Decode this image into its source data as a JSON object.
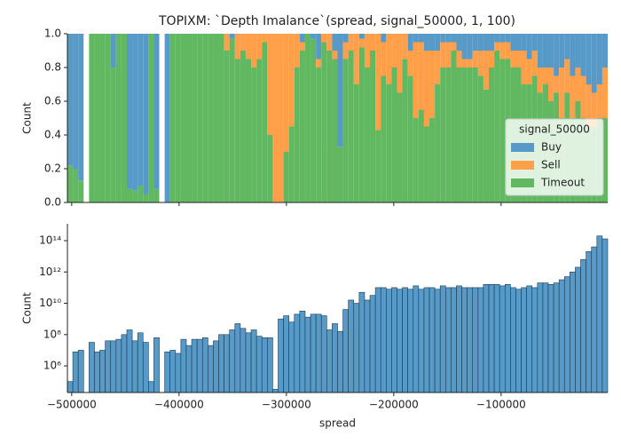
{
  "chart_data": [
    {
      "type": "histogram",
      "title": "TOPIXM: `Depth Imalance`(spread, signal_50000, 1, 100)",
      "ylabel": "Count",
      "stacked": true,
      "legend": "lower right",
      "legend_title": "signal_50000",
      "bins": [
        -504000,
        -498967,
        -493934,
        -488901,
        -483868,
        -478835,
        -473802,
        -468769,
        -463736,
        -458703,
        -453670,
        -448637,
        -443604,
        -438571,
        -433538,
        -428505,
        -423472,
        -418439,
        -413406,
        -408373,
        -403340,
        -398307,
        -393274,
        -388241,
        -383208,
        -378175,
        -373142,
        -368109,
        -363076,
        -358043,
        -353010,
        -347977,
        -342944,
        -337911,
        -332878,
        -327845,
        -322812,
        -317779,
        -312746,
        -307713,
        -302680,
        -297647,
        -292614,
        -287581,
        -282548,
        -277515,
        -272482,
        -267449,
        -262416,
        -257383,
        -252350,
        -247317,
        -242284,
        -237251,
        -232218,
        -227185,
        -222152,
        -217119,
        -212086,
        -207053,
        -202020,
        -196987,
        -191954,
        -186921,
        -181888,
        -176855,
        -171822,
        -166789,
        -161756,
        -156723,
        -151690,
        -146657,
        -141624,
        -136591,
        -131558,
        -126525,
        -121492,
        -116459,
        -111426,
        -106393,
        -101360,
        -96327,
        -91294,
        -86261,
        -81228,
        -76195,
        -71162,
        -66129,
        -61096,
        -56063,
        -51030,
        -45997,
        -40964,
        -35931,
        -30898,
        -25865,
        -20832,
        -15799,
        -10766,
        -5733,
        -700
      ],
      "series": [
        {
          "name": "Buy",
          "color": "#5799c7",
          "values": [
            0.78,
            0.8,
            0.87,
            null,
            0,
            0,
            0,
            0,
            0.2,
            0,
            0,
            0.92,
            0.93,
            0.9,
            0.95,
            0,
            0.92,
            null,
            1,
            0,
            0,
            0,
            0,
            0,
            0,
            0,
            0,
            0,
            0,
            0,
            0.03,
            0,
            0,
            0,
            0,
            0,
            0,
            0,
            0,
            0,
            0,
            0,
            0,
            0.05,
            0,
            0.03,
            0.15,
            0,
            0,
            0.1,
            0.67,
            0.05,
            0,
            0,
            0.03,
            0,
            0,
            0,
            0.05,
            0,
            0,
            0,
            0,
            0.1,
            0.05,
            0.05,
            0.1,
            0.1,
            0.1,
            0.05,
            0.05,
            0.05,
            0.1,
            0.15,
            0.15,
            0.1,
            0.1,
            0.1,
            0.1,
            0.05,
            0.05,
            0.05,
            0.1,
            0.1,
            0.1,
            0.15,
            0.1,
            0.2,
            0.2,
            0.2,
            0.25,
            0.2,
            0.15,
            0.25,
            0.2,
            0.25,
            0.3,
            0.35,
            0.3,
            0.2
          ]
        },
        {
          "name": "Sell",
          "color": "#ff9f4a",
          "values": [
            0,
            0,
            0,
            null,
            0,
            0,
            0,
            0,
            0,
            0,
            0,
            0,
            0,
            0,
            0,
            0,
            0,
            null,
            0,
            0,
            0,
            0,
            0,
            0,
            0,
            0,
            0,
            0,
            0,
            0.1,
            0,
            0.15,
            0.1,
            0.15,
            0.2,
            0.15,
            0.05,
            0.6,
            1,
            1,
            0.7,
            0.55,
            0.2,
            0.05,
            0,
            0,
            0.05,
            0.05,
            0.1,
            0.05,
            0,
            0.1,
            0.1,
            0.3,
            0.05,
            0.2,
            0.1,
            0.57,
            0.2,
            0.3,
            0.2,
            0.35,
            0.15,
            0.15,
            0.45,
            0.4,
            0.45,
            0.4,
            0.2,
            0.15,
            0.15,
            0.05,
            0.1,
            0.05,
            0.05,
            0.1,
            0.15,
            0.23,
            0.1,
            0.05,
            0.1,
            0.1,
            0.1,
            0.1,
            0.2,
            0.15,
            0.15,
            0.15,
            0.1,
            0.2,
            0.1,
            0.3,
            0.2,
            0.25,
            0.2,
            0.25,
            0.25,
            0.2,
            0.2,
            0.3
          ]
        },
        {
          "name": "Timeout",
          "color": "#61b861",
          "values": [
            0.22,
            0.2,
            0.13,
            null,
            1,
            1,
            1,
            1,
            0.8,
            1,
            1,
            0.08,
            0.07,
            0.1,
            0.05,
            1,
            0.08,
            null,
            0,
            1,
            1,
            1,
            1,
            1,
            1,
            1,
            1,
            1,
            1,
            0.9,
            0.97,
            0.85,
            0.9,
            0.85,
            0.8,
            0.85,
            0.95,
            0.4,
            0,
            0,
            0.3,
            0.45,
            0.8,
            0.9,
            1,
            0.97,
            0.8,
            0.95,
            0.9,
            0.85,
            0.33,
            0.85,
            0.9,
            0.7,
            0.92,
            0.8,
            0.9,
            0.43,
            0.75,
            0.7,
            0.8,
            0.65,
            0.85,
            0.75,
            0.5,
            0.55,
            0.45,
            0.5,
            0.7,
            0.8,
            0.8,
            0.9,
            0.8,
            0.8,
            0.8,
            0.8,
            0.75,
            0.67,
            0.8,
            0.9,
            0.85,
            0.85,
            0.8,
            0.8,
            0.7,
            0.7,
            0.75,
            0.65,
            0.7,
            0.6,
            0.65,
            0.5,
            0.65,
            0.5,
            0.6,
            0.5,
            0.45,
            0.45,
            0.5,
            0.5
          ]
        }
      ],
      "xlim": [
        -504000,
        -700
      ],
      "xticks": [
        -500000,
        -400000,
        -300000,
        -200000,
        -100000
      ],
      "ylim": [
        0,
        1
      ],
      "yticks": [
        {
          "value": 0,
          "label": "0.0"
        },
        {
          "value": 0.2,
          "label": "0.2"
        },
        {
          "value": 0.4,
          "label": "0.4"
        },
        {
          "value": 0.6,
          "label": "0.6"
        },
        {
          "value": 0.8,
          "label": "0.8"
        },
        {
          "value": 1,
          "label": "1.0"
        }
      ]
    },
    {
      "type": "histogram",
      "xlabel": "spread",
      "ylabel": "Count",
      "log_y": true,
      "color": "#5799c7",
      "bins": [
        -504000,
        -498967,
        -493934,
        -488901,
        -483868,
        -478835,
        -473802,
        -468769,
        -463736,
        -458703,
        -453670,
        -448637,
        -443604,
        -438571,
        -433538,
        -428505,
        -423472,
        -418439,
        -413406,
        -408373,
        -403340,
        -398307,
        -393274,
        -388241,
        -383208,
        -378175,
        -373142,
        -368109,
        -363076,
        -358043,
        -353010,
        -347977,
        -342944,
        -337911,
        -332878,
        -327845,
        -322812,
        -317779,
        -312746,
        -307713,
        -302680,
        -297647,
        -292614,
        -287581,
        -282548,
        -277515,
        -272482,
        -267449,
        -262416,
        -257383,
        -252350,
        -247317,
        -242284,
        -237251,
        -232218,
        -227185,
        -222152,
        -217119,
        -212086,
        -207053,
        -202020,
        -196987,
        -191954,
        -186921,
        -181888,
        -176855,
        -171822,
        -166789,
        -161756,
        -156723,
        -151690,
        -146657,
        -141624,
        -136591,
        -131558,
        -126525,
        -121492,
        -116459,
        -111426,
        -106393,
        -101360,
        -96327,
        -91294,
        -86261,
        -81228,
        -76195,
        -71162,
        -66129,
        -61096,
        -56063,
        -51030,
        -45997,
        -40964,
        -35931,
        -30898,
        -25865,
        -20832,
        -15799,
        -10766,
        -5733,
        -700
      ],
      "values": [
        100000.0,
        7900000.0,
        10000000.0,
        0,
        32000000.0,
        7900000.0,
        10000000.0,
        40000000.0,
        40000000.0,
        50000000.0,
        100000000.0,
        200000000.0,
        40000000.0,
        130000000.0,
        32000000.0,
        100000.0,
        63000000.0,
        0,
        7900000.0,
        10000000.0,
        6300000.0,
        50000000.0,
        20000000.0,
        50000000.0,
        50000000.0,
        63000000.0,
        20000000.0,
        40000000.0,
        100000000.0,
        100000000.0,
        200000000.0,
        500000000.0,
        250000000.0,
        130000000.0,
        200000000.0,
        79000000.0,
        63000000.0,
        63000000.0,
        32000.0,
        1000000000.0,
        1600000000.0,
        630000000.0,
        2000000000.0,
        3200000000.0,
        1300000000.0,
        2000000000.0,
        2000000000.0,
        1600000000.0,
        200000000.0,
        500000000.0,
        160000000.0,
        4000000000.0,
        16000000000.0,
        10000000000.0,
        50000000000.0,
        16000000000.0,
        32000000000.0,
        100000000000.0,
        100000000000.0,
        79000000000.0,
        100000000000.0,
        79000000000.0,
        100000000000.0,
        79000000000.0,
        130000000000.0,
        79000000000.0,
        100000000000.0,
        100000000000.0,
        79000000000.0,
        130000000000.0,
        100000000000.0,
        100000000000.0,
        130000000000.0,
        100000000000.0,
        100000000000.0,
        100000000000.0,
        100000000000.0,
        160000000000.0,
        160000000000.0,
        160000000000.0,
        130000000000.0,
        160000000000.0,
        100000000000.0,
        79000000000.0,
        100000000000.0,
        130000000000.0,
        100000000000.0,
        200000000000.0,
        200000000000.0,
        160000000000.0,
        200000000000.0,
        320000000000.0,
        500000000000.0,
        1000000000000.0,
        2000000000000.0,
        6300000000000.0,
        20000000000000.0,
        40000000000000.0,
        200000000000000.0,
        130000000000000.0
      ],
      "xlim": [
        -504000,
        -700
      ],
      "xticks": [
        {
          "value": -500000,
          "label": "−500000"
        },
        {
          "value": -400000,
          "label": "−400000"
        },
        {
          "value": -300000,
          "label": "−300000"
        },
        {
          "value": -200000,
          "label": "−200000"
        },
        {
          "value": -100000,
          "label": "−100000"
        }
      ],
      "ylim": [
        20000.0,
        1200000000000000.0
      ],
      "yticks": [
        {
          "value": 1000000.0,
          "label": "10⁶"
        },
        {
          "value": 100000000.0,
          "label": "10⁸"
        },
        {
          "value": 10000000000.0,
          "label": "10¹⁰"
        },
        {
          "value": 1000000000000.0,
          "label": "10¹²"
        },
        {
          "value": 100000000000000.0,
          "label": "10¹⁴"
        }
      ]
    }
  ]
}
